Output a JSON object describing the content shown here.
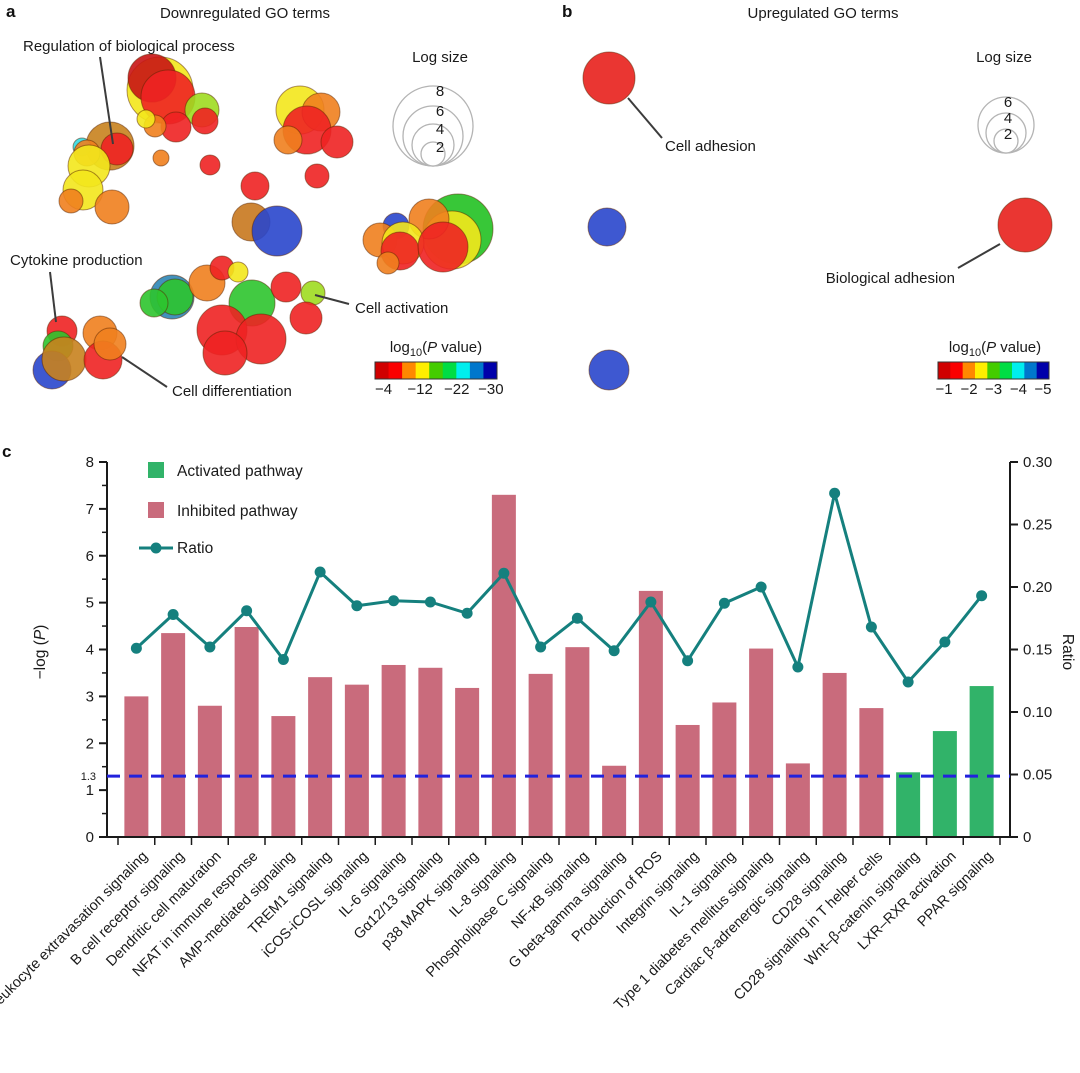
{
  "panel_letters": {
    "a": "a",
    "b": "b",
    "c": "c"
  },
  "chart_data": [
    {
      "type": "scatter",
      "id": "a",
      "title": "Downregulated GO terms",
      "size_legend": {
        "title": "Log size",
        "labels": [
          "8",
          "6",
          "4",
          "2"
        ],
        "radii": [
          40,
          30,
          21,
          12
        ]
      },
      "colorbar": {
        "label": {
          "pre": "log",
          "sub": "10",
          "mid": "(",
          "italic": "P",
          "post": " value)"
        },
        "ticks": [
          "−4",
          "−12",
          "−22",
          "−30"
        ],
        "colors": [
          "#d00000",
          "#fa0000",
          "#ff8800",
          "#ffee00",
          "#44cc00",
          "#00dd44",
          "#00eeee",
          "#0077cc",
          "#0000aa"
        ]
      },
      "annotations": [
        {
          "text": "Regulation of biological process",
          "tx": 23,
          "ty": 51,
          "anchor": "start",
          "line": [
            100,
            57,
            113,
            144
          ]
        },
        {
          "text": "Cytokine production",
          "tx": 10,
          "ty": 265,
          "anchor": "start",
          "line": [
            50,
            272,
            56,
            322
          ]
        },
        {
          "text": "Cell differentiation",
          "tx": 172,
          "ty": 396,
          "anchor": "start",
          "line": [
            167,
            387,
            122,
            357
          ]
        },
        {
          "text": "Cell activation",
          "tx": 355,
          "ty": 313,
          "anchor": "start",
          "line": [
            349,
            304,
            315,
            295
          ]
        }
      ],
      "bubbles": [
        [
          160,
          90,
          33,
          "#f3e71c"
        ],
        [
          152,
          78,
          24,
          "#c81414"
        ],
        [
          168,
          97,
          27,
          "#ee2222"
        ],
        [
          202,
          110,
          17,
          "#9edb20"
        ],
        [
          205,
          121,
          13,
          "#ee2222"
        ],
        [
          176,
          127,
          15,
          "#ee2222"
        ],
        [
          155,
          126,
          11,
          "#f07f1e"
        ],
        [
          146,
          119,
          9,
          "#f3e71c"
        ],
        [
          110,
          146,
          24,
          "#c8821e"
        ],
        [
          117,
          149,
          16,
          "#ee2222"
        ],
        [
          82,
          147,
          9,
          "#35dbe2"
        ],
        [
          87,
          153,
          13,
          "#f07f1e"
        ],
        [
          89,
          166,
          21,
          "#f3e71c"
        ],
        [
          83,
          190,
          20,
          "#f3e71c"
        ],
        [
          71,
          201,
          12,
          "#f07f1e"
        ],
        [
          112,
          207,
          17,
          "#f07f1e"
        ],
        [
          161,
          158,
          8,
          "#f07f1e"
        ],
        [
          210,
          165,
          10,
          "#ee2222"
        ],
        [
          255,
          186,
          14,
          "#ee2222"
        ],
        [
          300,
          110,
          24,
          "#f3e71c"
        ],
        [
          321,
          112,
          19,
          "#f07f1e"
        ],
        [
          307,
          130,
          24,
          "#ee2222"
        ],
        [
          337,
          142,
          16,
          "#ee2222"
        ],
        [
          288,
          140,
          14,
          "#f07f1e"
        ],
        [
          317,
          176,
          12,
          "#ee2222"
        ],
        [
          251,
          222,
          19,
          "#c8781e"
        ],
        [
          277,
          231,
          25,
          "#2946cc"
        ],
        [
          458,
          229,
          35,
          "#22c122"
        ],
        [
          452,
          240,
          29,
          "#f3e71c"
        ],
        [
          429,
          219,
          20,
          "#f07f1e"
        ],
        [
          396,
          226,
          13,
          "#2946cc"
        ],
        [
          380,
          240,
          17,
          "#f07f1e"
        ],
        [
          403,
          243,
          21,
          "#f3e71c"
        ],
        [
          400,
          251,
          19,
          "#ee2222"
        ],
        [
          443,
          247,
          25,
          "#ee2222"
        ],
        [
          388,
          263,
          11,
          "#f07f1e"
        ],
        [
          172,
          297,
          22,
          "#2e86b5"
        ],
        [
          175,
          297,
          18,
          "#2ec42e"
        ],
        [
          154,
          303,
          14,
          "#2ec42e"
        ],
        [
          207,
          283,
          18,
          "#f07f1e"
        ],
        [
          222,
          268,
          12,
          "#ee2222"
        ],
        [
          238,
          272,
          10,
          "#f3e71c"
        ],
        [
          252,
          303,
          23,
          "#2ec42e"
        ],
        [
          286,
          287,
          15,
          "#ee2222"
        ],
        [
          313,
          293,
          12,
          "#9edb20"
        ],
        [
          306,
          318,
          16,
          "#ee2222"
        ],
        [
          222,
          330,
          25,
          "#ee2222"
        ],
        [
          261,
          339,
          25,
          "#ee2222"
        ],
        [
          225,
          353,
          22,
          "#ee2222"
        ],
        [
          62,
          331,
          15,
          "#ee2222"
        ],
        [
          100,
          333,
          17,
          "#f07f1e"
        ],
        [
          58,
          346,
          15,
          "#2ec42e"
        ],
        [
          52,
          370,
          19,
          "#2946cc"
        ],
        [
          64,
          359,
          22,
          "#c8821e"
        ],
        [
          103,
          360,
          19,
          "#ee2222"
        ],
        [
          110,
          344,
          16,
          "#f07f1e"
        ]
      ]
    },
    {
      "type": "scatter",
      "id": "b",
      "title": "Upregulated GO terms",
      "size_legend": {
        "title": "Log size",
        "labels": [
          "6",
          "4",
          "2"
        ],
        "radii": [
          28,
          20,
          12
        ]
      },
      "colorbar": {
        "label": {
          "pre": "log",
          "sub": "10",
          "mid": "(",
          "italic": "P",
          "post": " value)"
        },
        "ticks": [
          "−1",
          "−2",
          "−3",
          "−4",
          "−5"
        ],
        "colors": [
          "#d00000",
          "#fa0000",
          "#ff8800",
          "#ffee00",
          "#44cc00",
          "#00dd44",
          "#00eeee",
          "#0077cc",
          "#0000aa"
        ]
      },
      "annotations": [
        {
          "text": "Cell adhesion",
          "tx": 125,
          "ty": 151,
          "anchor": "start",
          "line": [
            88,
            98,
            122,
            138
          ]
        },
        {
          "text": "Biological adhesion",
          "tx": 415,
          "ty": 283,
          "anchor": "end",
          "line": [
            418,
            268,
            460,
            244
          ]
        }
      ],
      "bubbles": [
        [
          69,
          78,
          26,
          "#e8201c"
        ],
        [
          67,
          227,
          19,
          "#2946cc"
        ],
        [
          485,
          225,
          27,
          "#e8201c"
        ],
        [
          69,
          370,
          20,
          "#2946cc"
        ]
      ]
    },
    {
      "type": "bar",
      "id": "c",
      "categories": [
        "Leukocyte extravasation signaling",
        "B cell receptor signaling",
        "Dendritic cell maturation",
        "NFAT in immune response",
        "AMP-mediated signaling",
        "TREM1 signaling",
        "iCOS-iCOSL signaling",
        "IL-6 signaling",
        "Gα12/13 signaling",
        "p38 MAPK signaling",
        "IL-8 signaling",
        "Phospholipase C signaling",
        "NF-κB signaling",
        "G beta-gamma signaling",
        "Production of ROS",
        "Integrin signaling",
        "IL-1 signaling",
        "Type 1 diabetes mellitus signaling",
        "Cardiac β-adrenergic signaling",
        "CD28 signaling",
        "CD28 signaling in T helper cells",
        "Wnt–β-catenin signaling",
        "LXR–RXR activation",
        "PPAR signaling"
      ],
      "series": [
        {
          "name": "-log(P)",
          "values": [
            3.0,
            4.35,
            2.8,
            4.48,
            2.58,
            3.41,
            3.25,
            3.67,
            3.61,
            3.18,
            7.3,
            3.48,
            4.05,
            1.52,
            5.25,
            2.39,
            2.87,
            4.02,
            1.57,
            3.5,
            2.75,
            1.38,
            2.26,
            3.22
          ],
          "bar_type": [
            "inhibited",
            "inhibited",
            "inhibited",
            "inhibited",
            "inhibited",
            "inhibited",
            "inhibited",
            "inhibited",
            "inhibited",
            "inhibited",
            "inhibited",
            "inhibited",
            "inhibited",
            "inhibited",
            "inhibited",
            "inhibited",
            "inhibited",
            "inhibited",
            "inhibited",
            "inhibited",
            "inhibited",
            "activated",
            "activated",
            "activated"
          ]
        },
        {
          "name": "Ratio",
          "values": [
            0.151,
            0.178,
            0.152,
            0.181,
            0.142,
            0.212,
            0.185,
            0.189,
            0.188,
            0.179,
            0.211,
            0.152,
            0.175,
            0.149,
            0.188,
            0.141,
            0.187,
            0.2,
            0.136,
            0.275,
            0.168,
            0.124,
            0.156,
            0.193
          ]
        }
      ],
      "legend": {
        "activated": "Activated pathway",
        "inhibited": "Inhibited pathway",
        "ratio": "Ratio"
      },
      "ylabel_left": {
        "pre": "−log (",
        "italic": "P",
        "post": ")"
      },
      "ylabel_right": "Ratio",
      "yleft_ticks": [
        "0",
        "1",
        "2",
        "3",
        "4",
        "5",
        "6",
        "7",
        "8"
      ],
      "yright_ticks": [
        "0",
        "0.05",
        "0.10",
        "0.15",
        "0.20",
        "0.25",
        "0.30"
      ],
      "ylim_left": [
        0,
        8
      ],
      "ylim_right": [
        0,
        0.3
      ],
      "threshold": {
        "value": 1.3,
        "label": "1.3"
      },
      "colors": {
        "activated": "#31b369",
        "inhibited": "#c96b7c",
        "ratio": "#15807e",
        "threshold": "#2222dd"
      }
    }
  ]
}
